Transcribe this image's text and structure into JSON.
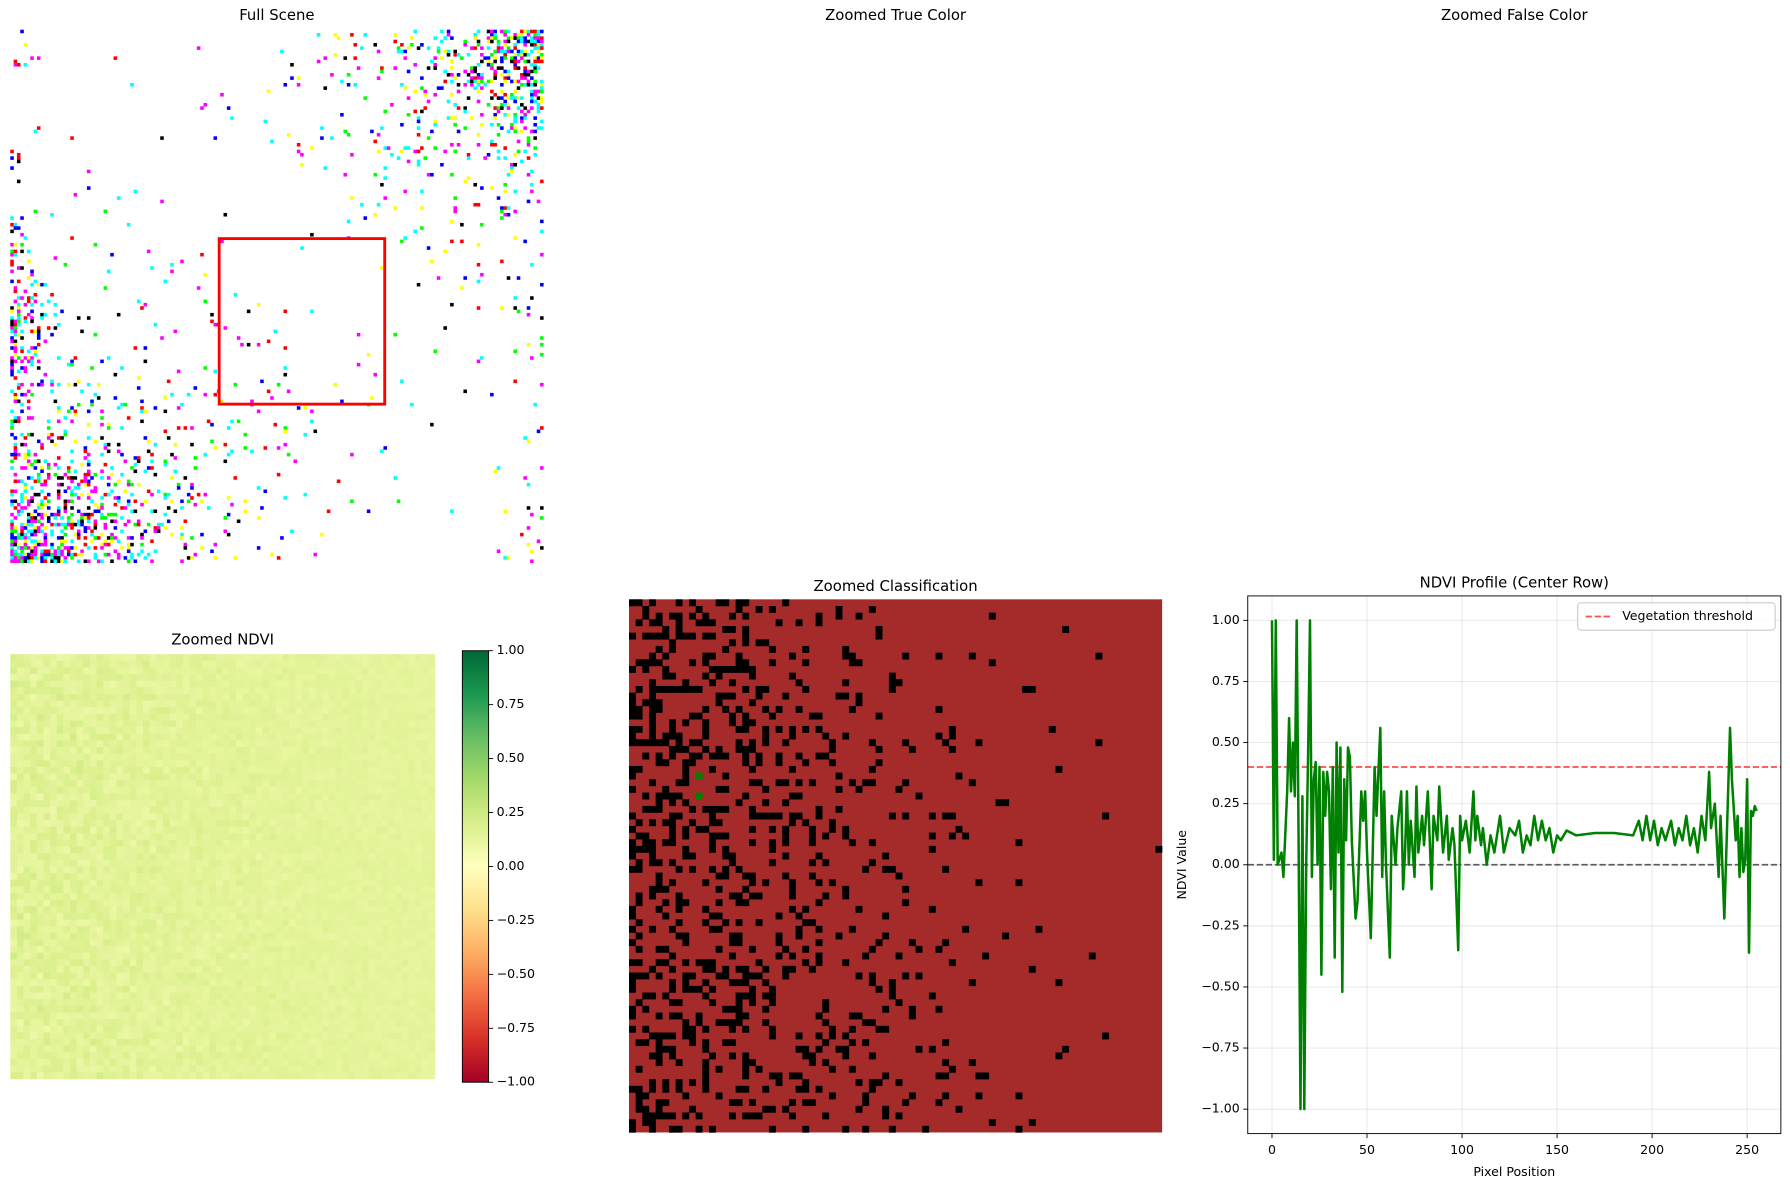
{
  "chart_data": [
    {
      "type": "image",
      "title": "Full Scene"
    },
    {
      "type": "image",
      "title": "Zoomed True Color"
    },
    {
      "type": "image",
      "title": "Zoomed False Color"
    },
    {
      "type": "heatmap",
      "title": "Zoomed NDVI",
      "colorbar": {
        "cmap": "RdYlGn",
        "lim": [
          -1,
          1
        ],
        "ticks": [
          {
            "value": 1,
            "label": "1.00"
          },
          {
            "value": 0.75,
            "label": "0.75"
          },
          {
            "value": 0.5,
            "label": "0.50"
          },
          {
            "value": 0.25,
            "label": "0.25"
          },
          {
            "value": 0,
            "label": "0.00"
          },
          {
            "value": -0.25,
            "label": "−0.25"
          },
          {
            "value": -0.5,
            "label": "−0.50"
          },
          {
            "value": -0.75,
            "label": "−0.75"
          },
          {
            "value": -1,
            "label": "−1.00"
          }
        ]
      }
    },
    {
      "type": "image",
      "title": "Zoomed Classification"
    },
    {
      "type": "line",
      "title": "NDVI Profile (Center Row)",
      "xlabel": "Pixel Position",
      "ylabel": "NDVI Value",
      "color": "#008000",
      "grid": true,
      "legend": "upper right",
      "xlim": [
        -12.75,
        267.75
      ],
      "xticks": [
        0,
        50,
        100,
        150,
        200,
        250
      ],
      "ylim": [
        -1.1,
        1.1
      ],
      "yticks": [
        {
          "value": -1,
          "label": "−1.00"
        },
        {
          "value": -0.75,
          "label": "−0.75"
        },
        {
          "value": -0.5,
          "label": "−0.50"
        },
        {
          "value": -0.25,
          "label": "−0.25"
        },
        {
          "value": 0,
          "label": "0.00"
        },
        {
          "value": 0.25,
          "label": "0.25"
        },
        {
          "value": 0.5,
          "label": "0.50"
        },
        {
          "value": 0.75,
          "label": "0.75"
        },
        {
          "value": 1,
          "label": "1.00"
        }
      ],
      "hlines": [
        {
          "value": 0.4,
          "name": "Vegetation threshold",
          "color": "#ff0000"
        },
        {
          "value": 0,
          "color": "#000000"
        }
      ],
      "x": [
        0,
        1,
        2,
        3,
        5,
        6,
        8,
        9,
        10,
        11,
        12,
        13,
        14,
        15,
        16,
        17,
        18,
        19,
        20,
        21,
        22,
        23,
        24,
        25,
        26,
        27,
        28,
        29,
        30,
        31,
        32,
        33,
        34,
        35,
        36,
        37,
        38,
        39,
        40,
        41,
        42,
        44,
        45,
        47,
        48,
        49,
        50,
        52,
        54,
        55,
        57,
        58,
        59,
        60,
        62,
        63,
        65,
        66,
        68,
        69,
        70,
        71,
        72,
        73,
        75,
        76,
        77,
        79,
        80,
        82,
        84,
        85,
        87,
        88,
        90,
        92,
        93,
        95,
        96,
        98,
        99,
        100,
        102,
        104,
        106,
        107,
        108,
        110,
        111,
        113,
        115,
        117,
        119,
        120,
        122,
        125,
        128,
        130,
        132,
        134,
        136,
        138,
        140,
        142,
        144,
        146,
        148,
        150,
        152,
        155,
        160,
        170,
        180,
        190,
        193,
        195,
        197,
        199,
        201,
        203,
        205,
        207,
        210,
        212,
        214,
        216,
        218,
        220,
        222,
        224,
        226,
        228,
        230,
        231,
        233,
        235,
        236,
        238,
        240,
        241,
        242,
        244,
        245,
        246,
        247,
        248,
        249,
        250,
        251,
        252,
        253,
        254,
        255
      ],
      "values": [
        1.0,
        0.02,
        1.0,
        0.0,
        0.05,
        -0.05,
        0.3,
        0.6,
        0.3,
        0.5,
        0.28,
        1.0,
        0.1,
        -1.0,
        0.28,
        -1.0,
        0.0,
        0.45,
        1.0,
        -0.05,
        0.35,
        0.42,
        0.0,
        0.4,
        -0.45,
        0.38,
        0.2,
        0.38,
        0.3,
        -0.1,
        0.4,
        -0.38,
        0.5,
        0.05,
        0.48,
        -0.52,
        0.35,
        0.1,
        0.48,
        0.44,
        0.1,
        -0.22,
        -0.15,
        0.3,
        0.18,
        0.3,
        0.05,
        -0.3,
        0.4,
        0.2,
        0.56,
        -0.05,
        0.3,
        0.0,
        -0.38,
        0.2,
        0.0,
        0.15,
        0.3,
        -0.1,
        0.05,
        0.3,
        0.0,
        0.18,
        -0.05,
        0.32,
        0.05,
        0.2,
        0.08,
        0.3,
        -0.1,
        0.2,
        0.1,
        0.32,
        0.05,
        0.2,
        0.02,
        0.15,
        0.08,
        -0.35,
        0.2,
        0.1,
        0.18,
        0.05,
        0.3,
        0.1,
        0.2,
        0.08,
        0.15,
        0.0,
        0.12,
        0.05,
        0.15,
        0.2,
        0.05,
        0.15,
        0.12,
        0.18,
        0.05,
        0.12,
        0.08,
        0.2,
        0.1,
        0.18,
        0.1,
        0.15,
        0.05,
        0.12,
        0.1,
        0.14,
        0.12,
        0.13,
        0.13,
        0.12,
        0.18,
        0.1,
        0.2,
        0.1,
        0.18,
        0.08,
        0.15,
        0.1,
        0.18,
        0.08,
        0.15,
        0.1,
        0.2,
        0.08,
        0.15,
        0.05,
        0.2,
        0.1,
        0.38,
        0.15,
        0.25,
        -0.05,
        0.2,
        -0.22,
        0.3,
        0.56,
        0.35,
        0.1,
        0.2,
        -0.05,
        0.15,
        -0.03,
        0.02,
        0.35,
        -0.36,
        0.22,
        0.2,
        0.24,
        0.22
      ]
    }
  ]
}
